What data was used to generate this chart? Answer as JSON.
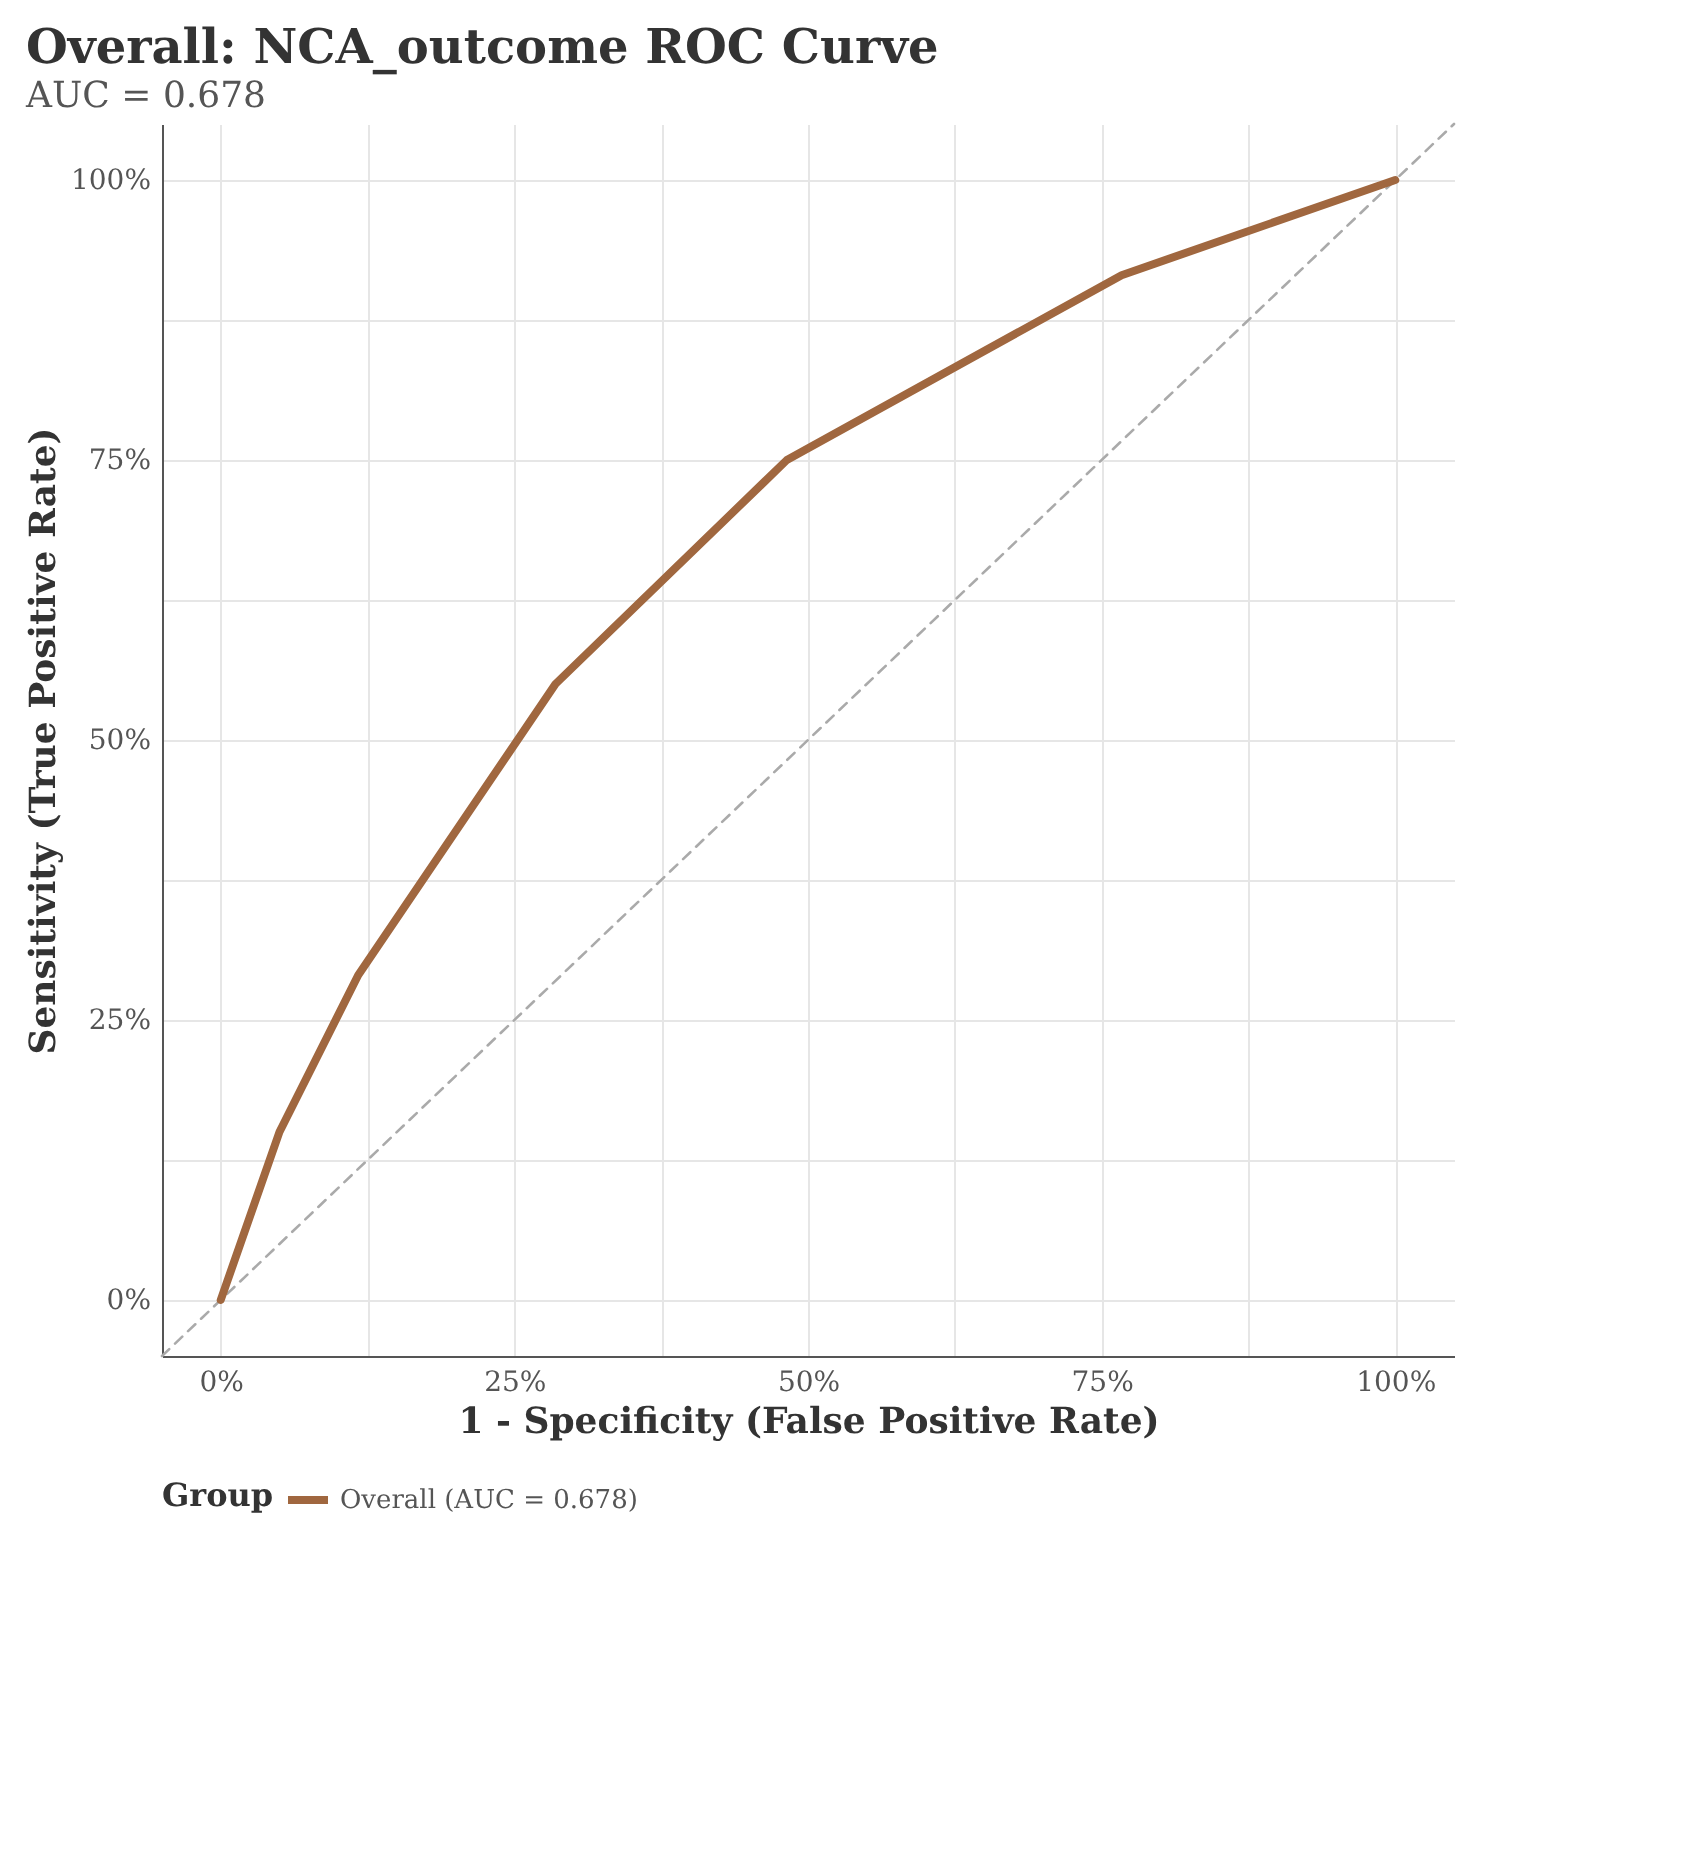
{
  "chart_data": {
    "type": "line",
    "title": "Overall: NCA_outcome ROC Curve",
    "subtitle": "AUC = 0.678",
    "xlabel": "1 - Specificity (False Positive Rate)",
    "ylabel": "Sensitivity (True Positive Rate)",
    "legend_title": "Group",
    "legend": "bottom",
    "grid": true,
    "xlim": [
      -0.05,
      1.05
    ],
    "ylim": [
      -0.05,
      1.05
    ],
    "xticks": [
      {
        "value": 0,
        "label": "0%"
      },
      {
        "value": 0.125,
        "label": null
      },
      {
        "value": 0.25,
        "label": "25%"
      },
      {
        "value": 0.375,
        "label": null
      },
      {
        "value": 0.5,
        "label": "50%"
      },
      {
        "value": 0.625,
        "label": null
      },
      {
        "value": 0.75,
        "label": "75%"
      },
      {
        "value": 0.875,
        "label": null
      },
      {
        "value": 1,
        "label": "100%"
      }
    ],
    "yticks": [
      {
        "value": 0,
        "label": "0%"
      },
      {
        "value": 0.125,
        "label": null
      },
      {
        "value": 0.25,
        "label": "25%"
      },
      {
        "value": 0.375,
        "label": null
      },
      {
        "value": 0.5,
        "label": "50%"
      },
      {
        "value": 0.625,
        "label": null
      },
      {
        "value": 0.75,
        "label": "75%"
      },
      {
        "value": 0.875,
        "label": null
      },
      {
        "value": 1,
        "label": "100%"
      }
    ],
    "series": [
      {
        "line_style": "dashed",
        "color": "#aaaaaa",
        "x": [
          -0.05,
          1.05
        ],
        "values": [
          -0.05,
          1.05
        ]
      },
      {
        "line_style": "solid",
        "name": "Overall (AUC = 0.678)",
        "color": "#a0673f",
        "x": [
          0,
          0.05,
          0.117,
          0.285,
          0.482,
          0.767,
          1
        ],
        "values": [
          0,
          0.15,
          0.29,
          0.55,
          0.75,
          0.915,
          1
        ]
      }
    ]
  }
}
